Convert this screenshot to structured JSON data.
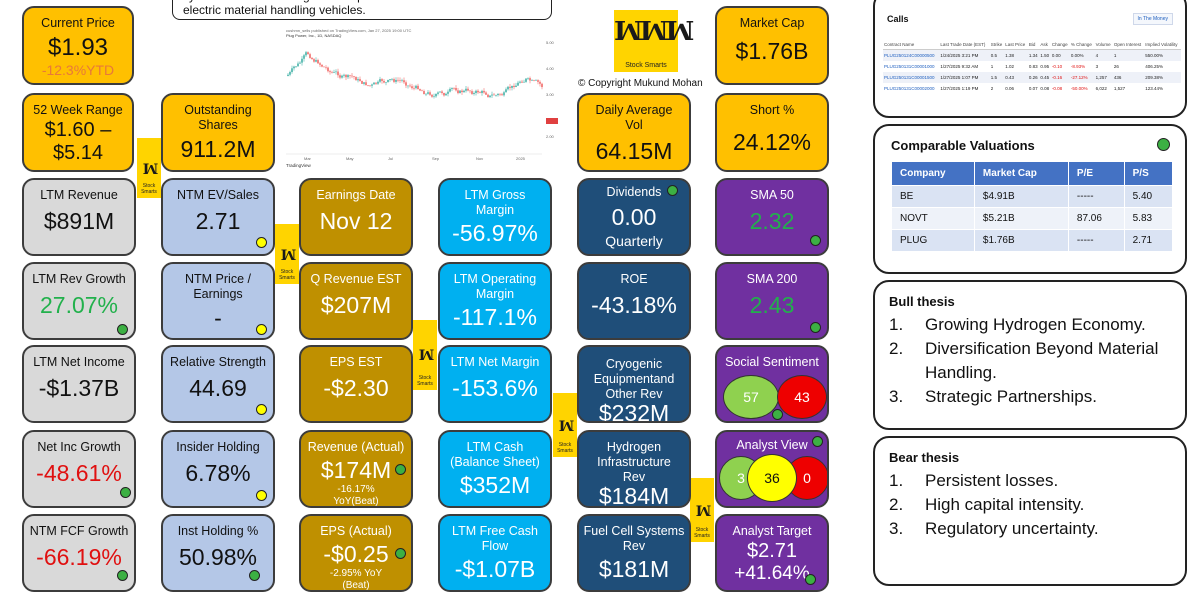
{
  "header_note": "system solution is designed to replace lead-acid batteries in electric material handling vehicles.",
  "copyright": "© Copyright Mukund Mohan",
  "logo_text": "Stock Smarts",
  "colors": {
    "yellow": "#ffc000",
    "gray": "#d9d9d9",
    "lavender": "#b4c7e7",
    "gold": "#bf9000",
    "cyan": "#00b0f0",
    "navy": "#1f4e79",
    "purple": "#7030a0",
    "positive": "#22b14c",
    "negative": "#e01010"
  },
  "tiles": {
    "current_price": {
      "label": "Current Price",
      "value": "$1.93",
      "sub": "-12.3%YTD"
    },
    "range_52w": {
      "label": "52 Week Range",
      "value_line1": "$1.60 –",
      "value_line2": "$5.14"
    },
    "shares_out": {
      "label_line1": "Outstanding",
      "label_line2": "Shares",
      "value": "911.2M"
    },
    "daily_vol": {
      "label_line1": "Daily Average",
      "label_line2": "Vol",
      "value": "64.15M"
    },
    "market_cap": {
      "label": "Market Cap",
      "value": "$1.76B"
    },
    "short_pct": {
      "label": "Short %",
      "value": "24.12%"
    },
    "ltm_revenue": {
      "label": "LTM Revenue",
      "value": "$891M"
    },
    "ntm_ev_sales": {
      "label": "NTM EV/Sales",
      "value": "2.71"
    },
    "earnings_date": {
      "label": "Earnings Date",
      "value": "Nov 12"
    },
    "gross_margin": {
      "label_line1": "LTM Gross",
      "label_line2": "Margin",
      "value": "-56.97%"
    },
    "dividends": {
      "label": "Dividends",
      "value": "0.00",
      "sub": "Quarterly"
    },
    "sma50": {
      "label": "SMA 50",
      "value": "2.32"
    },
    "rev_growth": {
      "label": "LTM Rev Growth",
      "value": "27.07%"
    },
    "ntm_pe": {
      "label_line1": "NTM Price /",
      "label_line2": "Earnings",
      "value": "-"
    },
    "q_rev_est": {
      "label": "Q Revenue EST",
      "value": "$207M"
    },
    "op_margin": {
      "label_line1": "LTM Operating",
      "label_line2": "Margin",
      "value": "-117.1%"
    },
    "roe": {
      "label": "ROE",
      "value": "-43.18%"
    },
    "sma200": {
      "label": "SMA 200",
      "value": "2.43"
    },
    "net_income": {
      "label": "LTM Net Income",
      "value": "-$1.37B"
    },
    "rel_strength": {
      "label": "Relative Strength",
      "value": "44.69"
    },
    "eps_est": {
      "label": "EPS EST",
      "value": "-$2.30"
    },
    "net_margin": {
      "label": "LTM Net Margin",
      "value": "-153.6%"
    },
    "cryogenic": {
      "label_line1": "Cryogenic",
      "label_line2": "Equipmentand",
      "label_line3": "Other Rev",
      "value": "$232M"
    },
    "social": {
      "label": "Social Sentiment",
      "positive": "57",
      "negative": "43"
    },
    "net_inc_growth": {
      "label": "Net Inc Growth",
      "value": "-48.61%"
    },
    "insider": {
      "label": "Insider Holding",
      "value": "6.78%"
    },
    "rev_actual": {
      "label": "Revenue (Actual)",
      "value": "$174M",
      "sub_line1": "-16.17%",
      "sub_line2": "YoY(Beat)"
    },
    "ltm_cash": {
      "label_line1": "LTM Cash",
      "label_line2": "(Balance Sheet)",
      "value": "$352M"
    },
    "hydrogen": {
      "label_line1": "Hydrogen",
      "label_line2": "Infrastructure",
      "label_line3": "Rev",
      "value": "$184M"
    },
    "analyst_view": {
      "label": "Analyst View",
      "buy": "3",
      "hold": "36",
      "sell": "0"
    },
    "fcf_growth": {
      "label": "NTM FCF Growth",
      "value": "-66.19%"
    },
    "inst": {
      "label": "Inst Holding %",
      "value": "50.98%"
    },
    "eps_actual": {
      "label": "EPS (Actual)",
      "value": "-$0.25",
      "sub_line1": "-2.95% YoY",
      "sub_line2": "(Beat)"
    },
    "fcf": {
      "label_line1": "LTM Free Cash",
      "label_line2": "Flow",
      "value": "-$1.07B"
    },
    "fuel_cell": {
      "label_line1": "Fuel Cell Systems",
      "label_line2": "Rev",
      "value": "$181M"
    },
    "analyst_target": {
      "label": "Analyst Target",
      "value": "$2.71",
      "sub": "+41.64%"
    }
  },
  "chart": {
    "caption": "cushmn_sells published on TradingView.com, Jan 27, 2025 19:00 UTC",
    "symbol_line": "Plug Power, Inc., 1D, NASDAQ",
    "x_labels": [
      "Mar",
      "May",
      "Jul",
      "Sep",
      "Nov",
      "2025"
    ],
    "y_labels": [
      "5.00",
      "4.00",
      "3.00",
      "2.00"
    ],
    "footer": "TradingView"
  },
  "calls": {
    "title": "Calls",
    "badge": "In The Money",
    "headers": [
      "Contract Name",
      "Last Trade Date (EST)",
      "Strike",
      "Last Price",
      "Bid",
      "Ask",
      "Change",
      "% Change",
      "Volume",
      "Open Interest",
      "Implied Volatility"
    ],
    "rows": [
      [
        "PLUG250124C00000500",
        "1/24/2025 3:21 PM",
        "0.5",
        "1.38",
        "1.34",
        "1.50",
        "0.00",
        "0.00%",
        "4",
        "1",
        "550.00%"
      ],
      [
        "PLUG250131C00001000",
        "1/27/2025 9:32 AM",
        "1",
        "1.02",
        "0.83",
        "0.95",
        "-0.10",
        "-8.93%",
        "3",
        "26",
        "406.25%"
      ],
      [
        "PLUG250131C00001500",
        "1/27/2025 1:07 PM",
        "1.5",
        "0.43",
        "0.26",
        "0.45",
        "-0.16",
        "-27.12%",
        "1,257",
        "436",
        "209.38%"
      ],
      [
        "PLUG250131C00002000",
        "1/27/2025 1:19 PM",
        "2",
        "0.06",
        "0.07",
        "0.08",
        "-0.08",
        "-50.00%",
        "6,022",
        "1,527",
        "123.44%"
      ]
    ]
  },
  "comparables": {
    "title": "Comparable Valuations",
    "headers": [
      "Company",
      "Market Cap",
      "P/E",
      "P/S"
    ],
    "rows": [
      [
        "BE",
        "$4.91B",
        "-----",
        "5.40"
      ],
      [
        "NOVT",
        "$5.21B",
        "87.06",
        "5.83"
      ],
      [
        "PLUG",
        "$1.76B",
        "-----",
        "2.71"
      ]
    ]
  },
  "bull": {
    "title": "Bull thesis",
    "items": [
      {
        "n": "1.",
        "t": "Growing Hydrogen Economy."
      },
      {
        "n": "2.",
        "t": "Diversification Beyond Material Handling."
      },
      {
        "n": "3.",
        "t": "Strategic Partnerships."
      }
    ]
  },
  "bear": {
    "title": "Bear thesis",
    "items": [
      {
        "n": "1.",
        "t": "Persistent losses."
      },
      {
        "n": "2.",
        "t": "High capital intensity."
      },
      {
        "n": "3.",
        "t": "Regulatory uncertainty."
      }
    ]
  }
}
